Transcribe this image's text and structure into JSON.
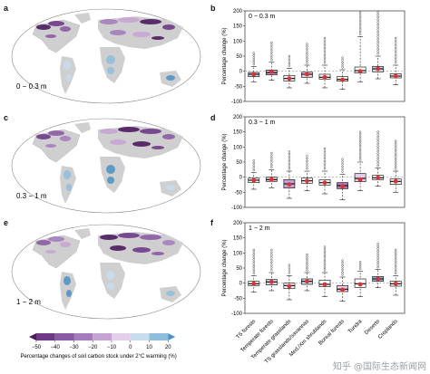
{
  "panels": {
    "a": "a",
    "b": "b",
    "c": "c",
    "d": "d",
    "e": "e",
    "f": "f"
  },
  "maps": [
    {
      "letter": "a",
      "depth_label": "0 − 0.3 m"
    },
    {
      "letter": "c",
      "depth_label": "0.3 − 1 m"
    },
    {
      "letter": "e",
      "depth_label": "1 − 2 m"
    }
  ],
  "legend": {
    "ticks": [
      "−50",
      "−40",
      "−30",
      "−20",
      "−10",
      "0",
      "10",
      "20"
    ],
    "caption": "Percentage changes of soil carbon stock under 2°C warming (%)",
    "colors": [
      "#4d1a5e",
      "#6e3a87",
      "#8a5ba3",
      "#a67dbb",
      "#c5a4d4",
      "#e3cfe8",
      "#c7dced",
      "#8fbedd",
      "#4f93c6"
    ]
  },
  "watermark": "知乎 @国际生态新闻网",
  "chart_data": [
    {
      "type": "box",
      "panel": "b",
      "title": "0 − 0.3 m",
      "ylabel": "Percentage change (%)",
      "ylim": [
        -100,
        200
      ],
      "yticks": [
        -100,
        -50,
        0,
        50,
        100,
        150,
        200
      ],
      "categories": [
        "TS forests",
        "Temperate forests",
        "Temperate grasslands",
        "TS grasslands/savannas",
        "Med./Xm shrublands",
        "Boreal forests",
        "Tundra",
        "Deserts",
        "Croplands"
      ],
      "box_colors": [
        "#c7dced",
        "#c5a4d4",
        "#ffffff",
        "#e3cfe8",
        "#ffffff",
        "#ffffff",
        "#ffffff",
        "#c7dced",
        "#ffffff"
      ],
      "q1": [
        -18,
        -12,
        -32,
        -20,
        -26,
        -33,
        -6,
        -2,
        -22
      ],
      "median": [
        -10,
        -5,
        -24,
        -10,
        -20,
        -27,
        2,
        8,
        -16
      ],
      "q3": [
        -4,
        4,
        -14,
        -3,
        -10,
        -18,
        14,
        16,
        -8
      ],
      "mean": [
        -10,
        -2,
        -24,
        -10,
        -20,
        -28,
        0,
        8,
        -16
      ],
      "whisker_low": [
        -35,
        -30,
        -55,
        -40,
        -55,
        -60,
        -35,
        -25,
        -45
      ],
      "whisker_high": [
        15,
        30,
        10,
        20,
        20,
        5,
        115,
        50,
        20
      ],
      "outlier_max": [
        60,
        95,
        50,
        90,
        110,
        45,
        195,
        195,
        110
      ]
    },
    {
      "type": "box",
      "panel": "d",
      "title": "0.3 − 1 m",
      "ylabel": "Percentage change (%)",
      "ylim": [
        -100,
        200
      ],
      "yticks": [
        -100,
        -50,
        0,
        50,
        100,
        150,
        200
      ],
      "categories": [
        "TS forests",
        "Temperate forests",
        "Temperate grasslands",
        "TS grasslands/savannas",
        "Med./Xm shrublands",
        "Boreal forests",
        "Tundra",
        "Deserts",
        "Croplands"
      ],
      "box_colors": [
        "#ffffff",
        "#e3cfe8",
        "#c5a4d4",
        "#ffffff",
        "#ffffff",
        "#a67dbb",
        "#e3cfe8",
        "#ffffff",
        "#ffffff"
      ],
      "q1": [
        -18,
        -14,
        -36,
        -20,
        -26,
        -38,
        -15,
        -8,
        -24
      ],
      "median": [
        -10,
        -8,
        -22,
        -12,
        -18,
        -28,
        -4,
        -2,
        -14
      ],
      "q3": [
        -3,
        0,
        -8,
        -3,
        -8,
        -18,
        12,
        6,
        -6
      ],
      "mean": [
        -10,
        -8,
        -24,
        -12,
        -18,
        -30,
        -8,
        -2,
        -14
      ],
      "whisker_low": [
        -40,
        -35,
        -70,
        -45,
        -55,
        -75,
        -45,
        -30,
        -50
      ],
      "whisker_high": [
        15,
        25,
        20,
        20,
        20,
        10,
        50,
        30,
        20
      ],
      "outlier_max": [
        55,
        80,
        85,
        70,
        95,
        60,
        150,
        150,
        120
      ]
    },
    {
      "type": "box",
      "panel": "f",
      "title": "1 − 2 m",
      "ylabel": "Percentage change (%)",
      "ylim": [
        -100,
        200
      ],
      "yticks": [
        -100,
        -50,
        0,
        50,
        100,
        150,
        200
      ],
      "categories": [
        "TS forests",
        "Temperate forests",
        "Temperate grasslands",
        "TS grasslands/savannas",
        "Med./Xm shrublands",
        "Boreal forests",
        "Tundra",
        "Deserts",
        "Croplands"
      ],
      "box_colors": [
        "#ffffff",
        "#c7dced",
        "#ffffff",
        "#c7dced",
        "#ffffff",
        "#e3cfe8",
        "#ffffff",
        "#8fbedd",
        "#ffffff"
      ],
      "q1": [
        -8,
        -6,
        -18,
        -4,
        -12,
        -28,
        -14,
        6,
        -10
      ],
      "median": [
        -2,
        4,
        -8,
        6,
        -4,
        -20,
        -2,
        14,
        -2
      ],
      "q3": [
        6,
        12,
        0,
        14,
        10,
        -8,
        14,
        22,
        6
      ],
      "mean": [
        -2,
        4,
        -10,
        6,
        -4,
        -22,
        -4,
        14,
        -2
      ],
      "whisker_low": [
        -30,
        -25,
        -55,
        -25,
        -45,
        -60,
        -45,
        -15,
        -40
      ],
      "whisker_high": [
        25,
        35,
        25,
        35,
        35,
        20,
        40,
        45,
        25
      ],
      "outlier_max": [
        110,
        110,
        60,
        95,
        120,
        75,
        70,
        130,
        110
      ]
    }
  ]
}
